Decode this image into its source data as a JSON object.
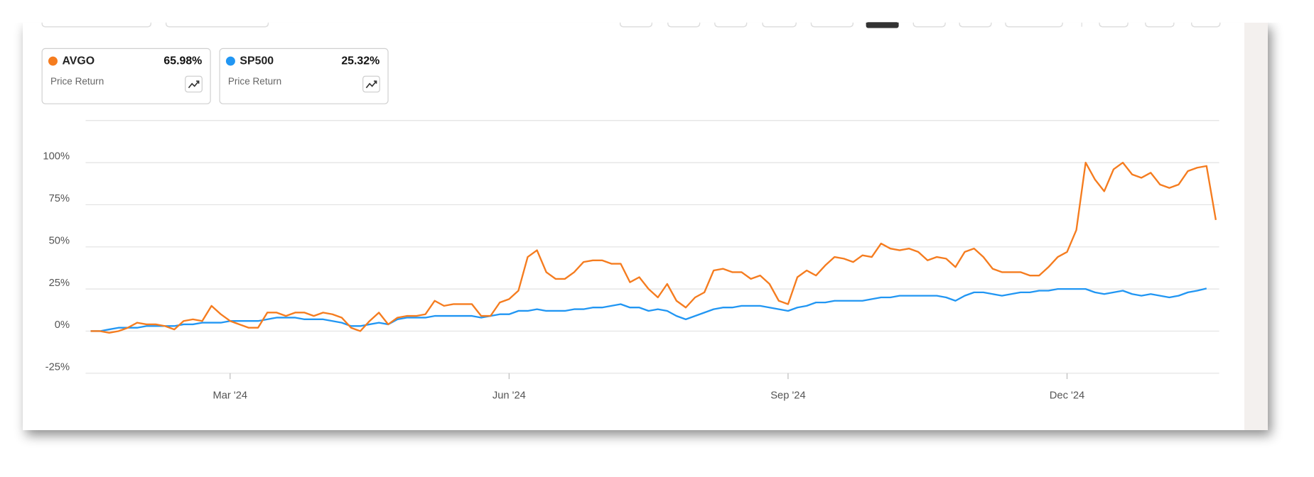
{
  "chart_data": {
    "type": "line",
    "categories": [
      null,
      null,
      null,
      null,
      null,
      null,
      null,
      null,
      null,
      null,
      null,
      null,
      null,
      null,
      null,
      "Mar '24",
      null,
      null,
      null,
      null,
      null,
      null,
      null,
      null,
      null,
      null,
      null,
      null,
      null,
      null,
      null,
      null,
      null,
      null,
      null,
      null,
      null,
      null,
      null,
      null,
      null,
      null,
      null,
      null,
      null,
      "Jun '24",
      null,
      null,
      null,
      null,
      null,
      null,
      null,
      null,
      null,
      null,
      null,
      null,
      null,
      null,
      null,
      null,
      null,
      null,
      null,
      null,
      null,
      null,
      null,
      null,
      null,
      null,
      null,
      null,
      null,
      "Sep '24",
      null,
      null,
      null,
      null,
      null,
      null,
      null,
      null,
      null,
      null,
      null,
      null,
      null,
      null,
      null,
      null,
      null,
      null,
      null,
      null,
      null,
      null,
      null,
      null,
      null,
      null,
      null,
      null,
      null,
      "Dec '24",
      null,
      null,
      null,
      null,
      null,
      null,
      null,
      null,
      null,
      null,
      null,
      null,
      null,
      null,
      null,
      null
    ],
    "series": [
      {
        "name": "AVGO",
        "color": "#f57c1f",
        "return_label": "65.98%",
        "metric": "Price Return",
        "values": [
          0,
          0,
          -1,
          0,
          2,
          5,
          4,
          4,
          3,
          1,
          6,
          7,
          6,
          15,
          10,
          6,
          4,
          2,
          2,
          11,
          11,
          9,
          11,
          11,
          9,
          11,
          10,
          8,
          2,
          0,
          6,
          11,
          4,
          8,
          9,
          9,
          10,
          18,
          15,
          16,
          16,
          16,
          9,
          9,
          17,
          19,
          24,
          44,
          48,
          35,
          31,
          31,
          35,
          41,
          42,
          42,
          40,
          40,
          29,
          32,
          25,
          20,
          28,
          18,
          14,
          20,
          23,
          36,
          37,
          35,
          35,
          31,
          33,
          28,
          18,
          16,
          32,
          36,
          33,
          39,
          44,
          43,
          41,
          45,
          44,
          52,
          49,
          48,
          49,
          47,
          42,
          44,
          43,
          38,
          47,
          49,
          44,
          37,
          35,
          35,
          35,
          33,
          33,
          38,
          44,
          47,
          60,
          100,
          90,
          83,
          96,
          100,
          93,
          91,
          94,
          87,
          85,
          87,
          95,
          97,
          98,
          65.98
        ]
      },
      {
        "name": "SP500",
        "color": "#2196f3",
        "return_label": "25.32%",
        "metric": "Price Return",
        "values": [
          0,
          0,
          1,
          2,
          2,
          2,
          3,
          3,
          3,
          3,
          4,
          4,
          5,
          5,
          5,
          6,
          6,
          6,
          6,
          7,
          8,
          8,
          8,
          7,
          7,
          7,
          6,
          5,
          3,
          3,
          4,
          5,
          4,
          7,
          8,
          8,
          8,
          9,
          9,
          9,
          9,
          9,
          8,
          9,
          10,
          10,
          12,
          12,
          13,
          12,
          12,
          12,
          13,
          13,
          14,
          14,
          15,
          16,
          14,
          14,
          12,
          13,
          12,
          9,
          7,
          9,
          11,
          13,
          14,
          14,
          15,
          15,
          15,
          14,
          13,
          12,
          14,
          15,
          17,
          17,
          18,
          18,
          18,
          18,
          19,
          20,
          20,
          21,
          21,
          21,
          21,
          21,
          20,
          18,
          21,
          23,
          23,
          22,
          21,
          22,
          23,
          23,
          24,
          24,
          25,
          25,
          25,
          25,
          23,
          22,
          23,
          24,
          22,
          21,
          22,
          21,
          20,
          21,
          23,
          24,
          25.32,
          null
        ]
      }
    ],
    "ylim": [
      -25,
      125
    ],
    "yticks": [
      {
        "value": -25,
        "label": "-25%"
      },
      {
        "value": 0,
        "label": "0%"
      },
      {
        "value": 25,
        "label": "25%"
      },
      {
        "value": 50,
        "label": "50%"
      },
      {
        "value": 75,
        "label": "75%"
      },
      {
        "value": 100,
        "label": "100%"
      }
    ],
    "grid": true
  }
}
